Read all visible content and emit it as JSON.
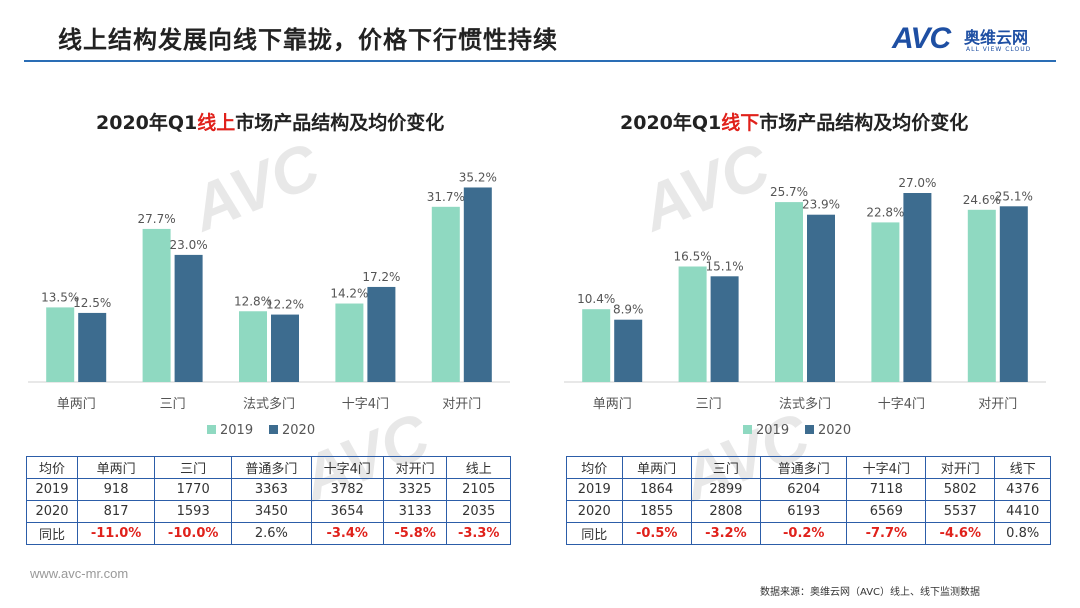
{
  "header": {
    "title": "线上结构发展向线下靠拢，价格下行惯性持续",
    "logo_text": "AVC",
    "logo_cn": "奥维云网",
    "logo_en": "ALL VIEW CLOUD"
  },
  "colors": {
    "s2019": "#8fd9c1",
    "s2020": "#3d6c8f",
    "rule": "#2a6db5",
    "negative": "#e0211b"
  },
  "chart_data": [
    {
      "type": "bar",
      "title_prefix": "2020年Q1",
      "title_highlight": "线上",
      "title_suffix": "市场产品结构及均价变化",
      "categories": [
        "单两门",
        "三门",
        "法式多门",
        "十字4门",
        "对开门"
      ],
      "series": [
        {
          "name": "2019",
          "values": [
            13.5,
            27.7,
            12.8,
            14.2,
            31.7
          ],
          "labels": [
            "13.5%",
            "27.7%",
            "12.8%",
            "14.2%",
            "31.7%"
          ]
        },
        {
          "name": "2020",
          "values": [
            12.5,
            23.0,
            12.2,
            17.2,
            35.2
          ],
          "labels": [
            "12.5%",
            "23.0%",
            "12.2%",
            "17.2%",
            "35.2%"
          ]
        }
      ],
      "ylim": [
        0,
        38
      ],
      "legend_position": "bottom"
    },
    {
      "type": "bar",
      "title_prefix": "2020年Q1",
      "title_highlight": "线下",
      "title_suffix": "市场产品结构及均价变化",
      "categories": [
        "单两门",
        "三门",
        "法式多门",
        "十字4门",
        "对开门"
      ],
      "series": [
        {
          "name": "2019",
          "values": [
            10.4,
            16.5,
            25.7,
            22.8,
            24.6
          ],
          "labels": [
            "10.4%",
            "16.5%",
            "25.7%",
            "22.8%",
            "24.6%"
          ]
        },
        {
          "name": "2020",
          "values": [
            8.9,
            15.1,
            23.9,
            27.0,
            25.1
          ],
          "labels": [
            "8.9%",
            "15.1%",
            "23.9%",
            "27.0%",
            "25.1%"
          ]
        }
      ],
      "ylim": [
        0,
        30
      ],
      "legend_position": "bottom"
    }
  ],
  "tables": [
    {
      "header": [
        "均价",
        "单两门",
        "三门",
        "普通多门",
        "十字4门",
        "对开门",
        "线上"
      ],
      "rows": [
        [
          "2019",
          "918",
          "1770",
          "3363",
          "3782",
          "3325",
          "2105"
        ],
        [
          "2020",
          "817",
          "1593",
          "3450",
          "3654",
          "3133",
          "2035"
        ],
        [
          "同比",
          "-11.0%",
          "-10.0%",
          "2.6%",
          "-3.4%",
          "-5.8%",
          "-3.3%"
        ]
      ]
    },
    {
      "header": [
        "均价",
        "单两门",
        "三门",
        "普通多门",
        "十字4门",
        "对开门",
        "线下"
      ],
      "rows": [
        [
          "2019",
          "1864",
          "2899",
          "6204",
          "7118",
          "5802",
          "4376"
        ],
        [
          "2020",
          "1855",
          "2808",
          "6193",
          "6569",
          "5537",
          "4410"
        ],
        [
          "同比",
          "-0.5%",
          "-3.2%",
          "-0.2%",
          "-7.7%",
          "-4.6%",
          "0.8%"
        ]
      ]
    }
  ],
  "footer": {
    "website": "www.avc-mr.com",
    "source": "数据来源：奥维云网（AVC）线上、线下监测数据"
  }
}
